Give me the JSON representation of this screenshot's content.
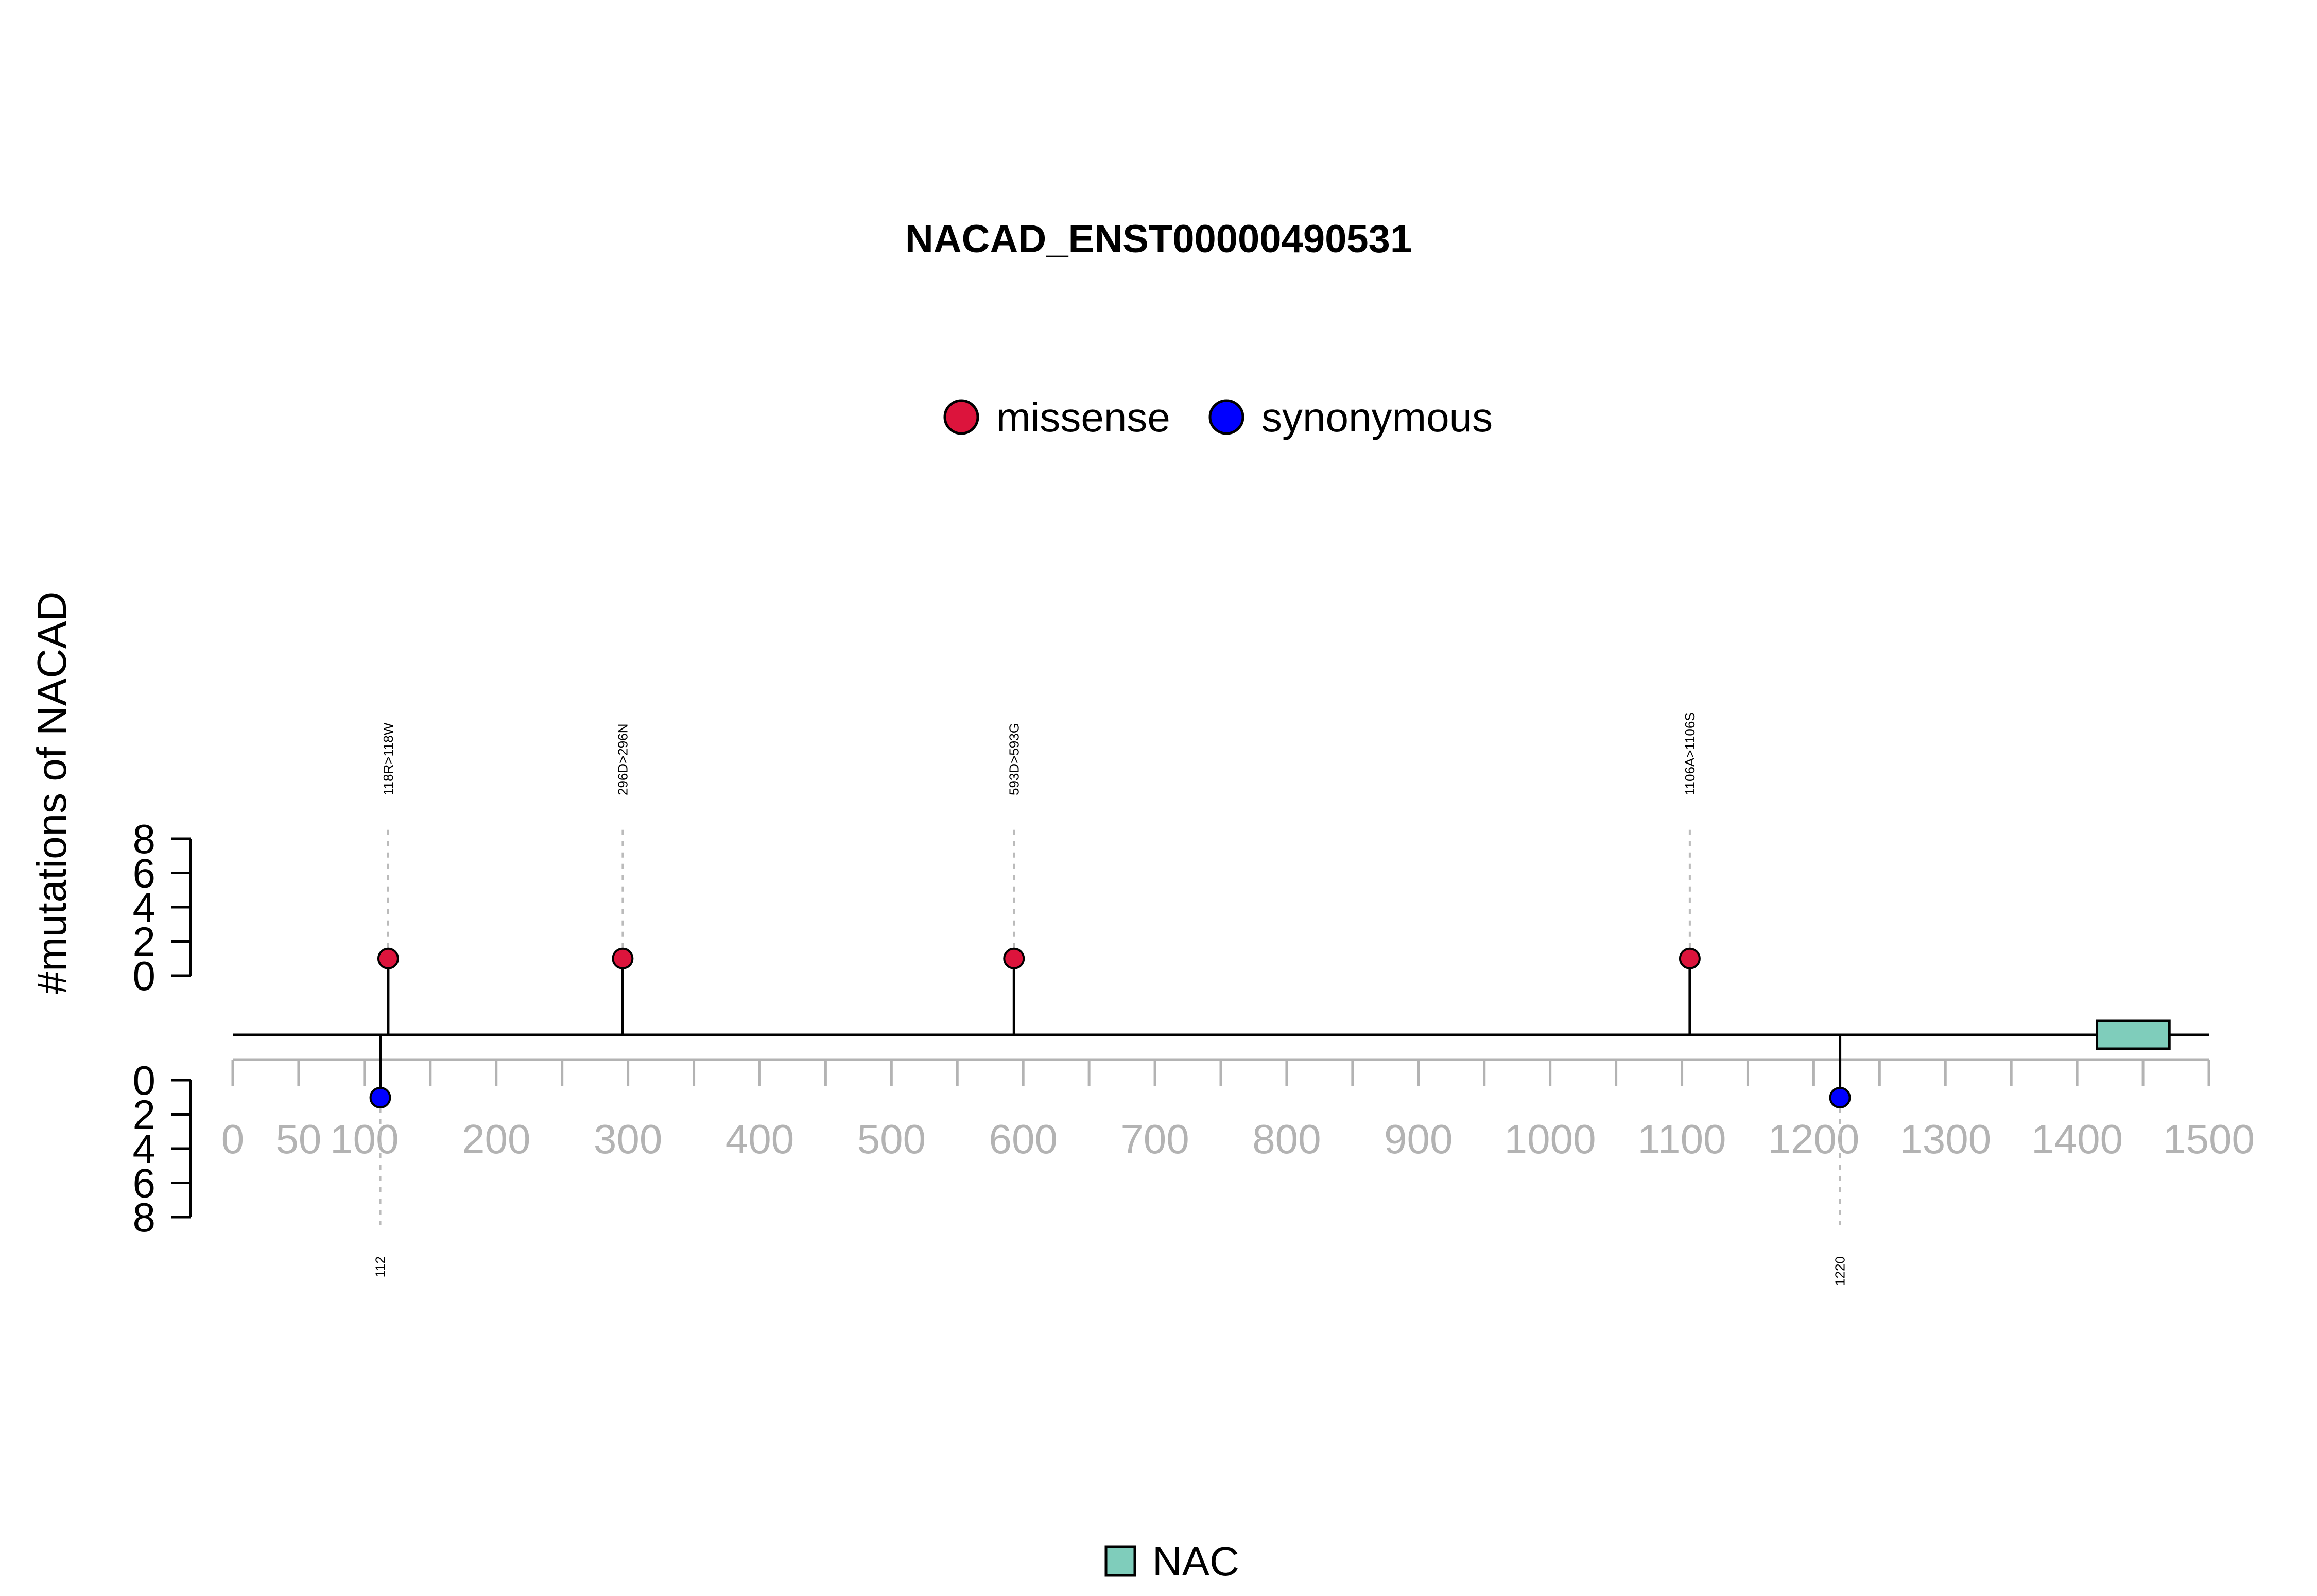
{
  "chart_data": {
    "type": "lollipop",
    "title": "NACAD_ENST00000490531",
    "ylabel": "#mutations of NACAD",
    "xlim": [
      0,
      1500
    ],
    "x_ticks": [
      0,
      50,
      100,
      200,
      300,
      400,
      500,
      600,
      700,
      800,
      900,
      1000,
      1100,
      1200,
      1300,
      1400,
      1500
    ],
    "y_ticks_top": [
      0,
      2,
      4,
      6,
      8
    ],
    "y_ticks_bottom": [
      0,
      2,
      4,
      6,
      8
    ],
    "ylim": [
      0,
      8
    ],
    "legend": [
      {
        "label": "missense",
        "color": "#DC143C"
      },
      {
        "label": "synonymous",
        "color": "#0000FF"
      }
    ],
    "mutations": [
      {
        "position": 118,
        "count": 1,
        "type": "missense",
        "label": "118R>118W",
        "side": "top"
      },
      {
        "position": 296,
        "count": 1,
        "type": "missense",
        "label": "296D>296N",
        "side": "top"
      },
      {
        "position": 593,
        "count": 1,
        "type": "missense",
        "label": "593D>593G",
        "side": "top"
      },
      {
        "position": 1106,
        "count": 1,
        "type": "missense",
        "label": "1106A>1106S",
        "side": "top"
      },
      {
        "position": 112,
        "count": 1,
        "type": "synonymous",
        "label": "112",
        "side": "bottom"
      },
      {
        "position": 1220,
        "count": 1,
        "type": "synonymous",
        "label": "1220",
        "side": "bottom"
      }
    ],
    "domains": [
      {
        "name": "NAC",
        "start": 1415,
        "end": 1470,
        "color": "#7FCDBB"
      }
    ]
  }
}
